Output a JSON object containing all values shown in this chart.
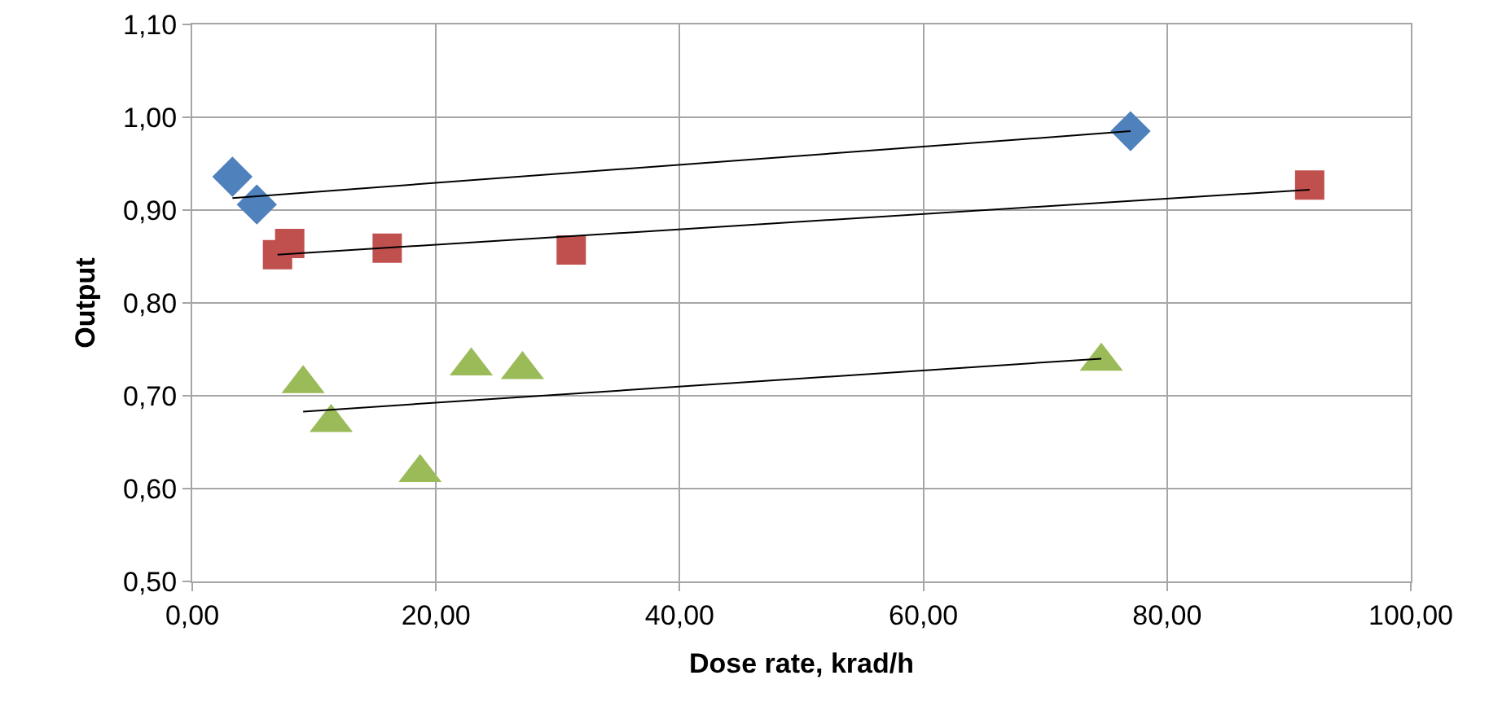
{
  "chart_data": {
    "type": "scatter",
    "xlabel": "Dose rate, krad/h",
    "ylabel": "Output",
    "xlim": [
      0,
      100
    ],
    "ylim": [
      0.5,
      1.1
    ],
    "xticks": [
      {
        "value": 0,
        "label": "0,00"
      },
      {
        "value": 20,
        "label": "20,00"
      },
      {
        "value": 40,
        "label": "40,00"
      },
      {
        "value": 60,
        "label": "60,00"
      },
      {
        "value": 80,
        "label": "80,00"
      },
      {
        "value": 100,
        "label": "100,00"
      }
    ],
    "yticks": [
      {
        "value": 0.5,
        "label": "0,50"
      },
      {
        "value": 0.6,
        "label": "0,60"
      },
      {
        "value": 0.7,
        "label": "0,70"
      },
      {
        "value": 0.8,
        "label": "0,80"
      },
      {
        "value": 0.9,
        "label": "0,90"
      },
      {
        "value": 1.0,
        "label": "1,00"
      },
      {
        "value": 1.1,
        "label": "1,10"
      }
    ],
    "grid": true,
    "series": [
      {
        "marker": "diamond",
        "color": "#4f81bd",
        "x": [
          3.3,
          5.3,
          77.0
        ],
        "values": [
          0.936,
          0.906,
          0.985
        ]
      },
      {
        "marker": "square",
        "color": "#c0504d",
        "x": [
          7.0,
          8.0,
          16.0,
          31.1,
          91.7
        ],
        "values": [
          0.852,
          0.864,
          0.859,
          0.857,
          0.927
        ]
      },
      {
        "marker": "triangle",
        "color": "#9bbb59",
        "x": [
          9.1,
          11.4,
          18.7,
          22.9,
          27.1,
          74.6
        ],
        "values": [
          0.713,
          0.671,
          0.617,
          0.732,
          0.728,
          0.737
        ]
      },
      {
        "type": "line",
        "marker": "none",
        "color": "#000000",
        "x": [
          3.3,
          77.0
        ],
        "values": [
          0.913,
          0.985
        ]
      },
      {
        "type": "line",
        "marker": "none",
        "color": "#000000",
        "x": [
          7.0,
          91.7
        ],
        "values": [
          0.852,
          0.922
        ]
      },
      {
        "type": "line",
        "marker": "none",
        "color": "#000000",
        "x": [
          9.1,
          74.6
        ],
        "values": [
          0.683,
          0.74
        ]
      }
    ]
  }
}
